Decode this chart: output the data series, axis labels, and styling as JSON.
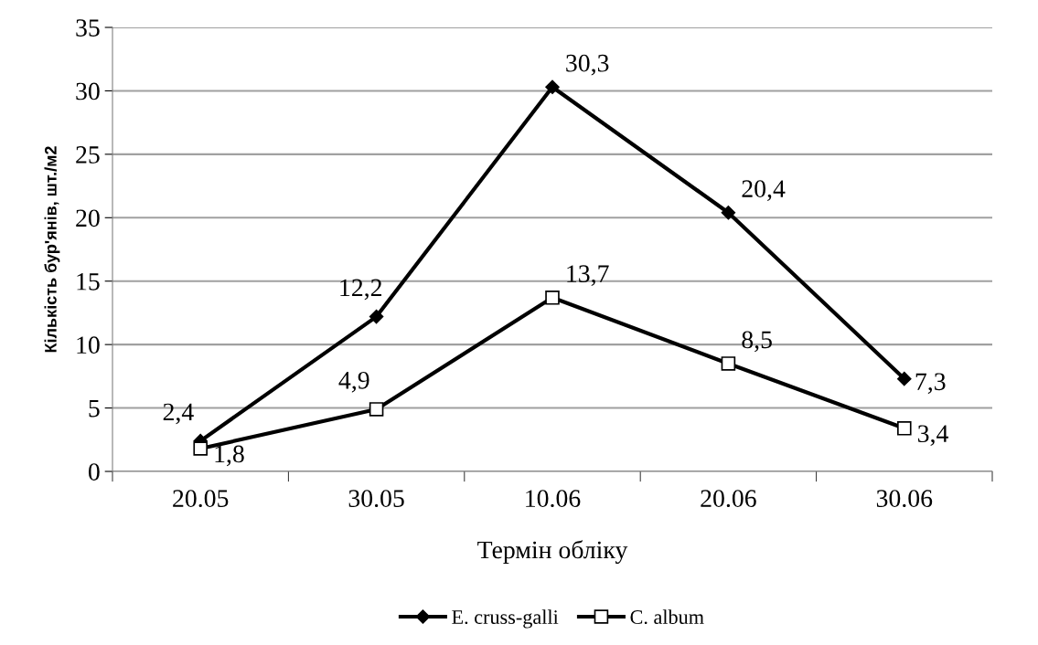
{
  "chart_data": {
    "type": "line",
    "xlabel": "Термін обліку",
    "ylabel": "Кількість бур'янів, шт./м2",
    "categories": [
      "20.05",
      "30.05",
      "10.06",
      "20.06",
      "30.06"
    ],
    "series": [
      {
        "name": "E. cruss-galli",
        "color": "#000000",
        "marker": "diamond",
        "values": [
          2.4,
          12.2,
          30.3,
          20.4,
          7.3
        ],
        "value_labels": [
          "2,4",
          "12,2",
          "30,3",
          "20,4",
          "7,3"
        ]
      },
      {
        "name": "C. album",
        "color": "#000000",
        "marker": "square",
        "values": [
          1.8,
          4.9,
          13.7,
          8.5,
          3.4
        ],
        "value_labels": [
          "1,8",
          "4,9",
          "13,7",
          "8,5",
          "3,4"
        ]
      }
    ],
    "ylim": [
      0,
      35
    ],
    "yticks": [
      0,
      5,
      10,
      15,
      20,
      25,
      30,
      35
    ],
    "grid": "y",
    "legend": "bottom",
    "line_style": "solid"
  }
}
